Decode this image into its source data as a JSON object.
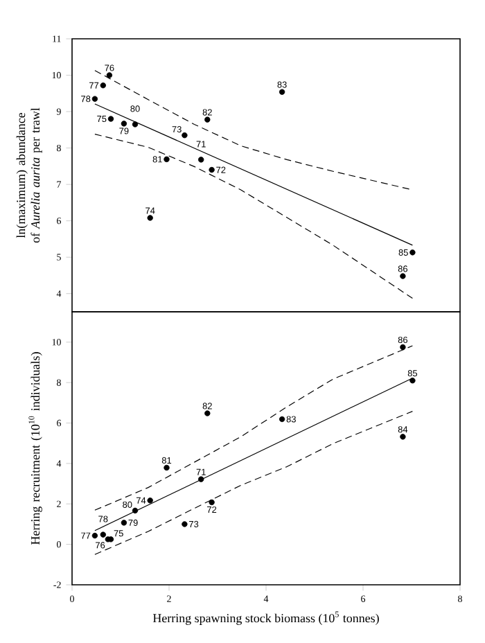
{
  "chart_data": [
    {
      "type": "scatter",
      "ylabel": "ln(maximum) abundance of *Aurelia aurita* per trawl",
      "xlim": [
        0,
        8
      ],
      "ylim": [
        3.5,
        11
      ],
      "yticks": [
        4,
        5,
        6,
        7,
        8,
        9,
        10,
        11
      ],
      "tick_labels": "y",
      "series": [
        {
          "color": "#000000",
          "marker": "circle",
          "x": [
            2.66,
            2.88,
            2.32,
            1.61,
            0.8,
            0.77,
            0.64,
            0.47,
            1.07,
            1.3,
            1.95,
            2.79,
            4.33,
            7.02,
            6.82
          ],
          "values": [
            7.68,
            7.4,
            8.35,
            6.08,
            8.8,
            10.0,
            9.72,
            9.35,
            8.67,
            8.65,
            7.69,
            8.78,
            9.54,
            5.13,
            4.48
          ]
        },
        {
          "type": "line",
          "color": "#000000",
          "marker": "none",
          "line_style": "solid",
          "x": [
            0.47,
            7.02
          ],
          "values": [
            9.21,
            5.33
          ]
        },
        {
          "type": "line",
          "color": "#000000",
          "marker": "none",
          "line_style": "dashed",
          "x": [
            0.47,
            1.57,
            2.52,
            3.48,
            4.43,
            5.38,
            7.02
          ],
          "values": [
            10.13,
            9.33,
            8.65,
            8.06,
            7.68,
            7.36,
            6.85
          ]
        },
        {
          "type": "line",
          "color": "#000000",
          "marker": "none",
          "line_style": "dashed",
          "x": [
            0.47,
            1.57,
            2.52,
            3.48,
            4.43,
            5.38,
            7.02
          ],
          "values": [
            8.38,
            8.02,
            7.49,
            6.85,
            6.09,
            5.33,
            3.87
          ]
        }
      ],
      "annotations": [
        {
          "text": "71",
          "x": 2.66,
          "y": 7.68
        },
        {
          "text": "72",
          "x": 2.88,
          "y": 7.4
        },
        {
          "text": "73",
          "x": 2.32,
          "y": 8.35
        },
        {
          "text": "74",
          "x": 1.61,
          "y": 6.08
        },
        {
          "text": "75",
          "x": 0.8,
          "y": 8.8
        },
        {
          "text": "76",
          "x": 0.77,
          "y": 10.0
        },
        {
          "text": "77",
          "x": 0.64,
          "y": 9.72
        },
        {
          "text": "78",
          "x": 0.47,
          "y": 9.35
        },
        {
          "text": "79",
          "x": 1.07,
          "y": 8.67
        },
        {
          "text": "80",
          "x": 1.3,
          "y": 8.65
        },
        {
          "text": "81",
          "x": 1.95,
          "y": 7.69
        },
        {
          "text": "82",
          "x": 2.79,
          "y": 8.78
        },
        {
          "text": "83",
          "x": 4.33,
          "y": 9.54
        },
        {
          "text": "85",
          "x": 7.02,
          "y": 5.13
        },
        {
          "text": "86",
          "x": 6.82,
          "y": 4.48
        }
      ]
    },
    {
      "type": "scatter",
      "xlabel": "Herring spawning stock biomass (10$^{5}$ tonnes)",
      "ylabel": "Herring recruitment (10$^{10}$ individuals)",
      "xlim": [
        0,
        8
      ],
      "xticks": [
        0,
        2,
        4,
        6,
        8
      ],
      "ylim": [
        -2,
        11.5
      ],
      "yticks": [
        -2,
        0,
        2,
        4,
        6,
        8,
        10
      ],
      "series": [
        {
          "color": "#000000",
          "marker": "circle",
          "x": [
            2.66,
            2.88,
            2.32,
            1.61,
            0.8,
            0.74,
            0.47,
            0.64,
            1.07,
            1.3,
            1.95,
            2.79,
            4.33,
            6.82,
            7.02,
            6.82
          ],
          "values": [
            3.22,
            2.08,
            1.0,
            2.17,
            0.25,
            0.25,
            0.43,
            0.48,
            1.07,
            1.67,
            3.79,
            6.48,
            6.19,
            5.32,
            8.1,
            9.75
          ]
        },
        {
          "type": "line",
          "color": "#000000",
          "marker": "none",
          "line_style": "solid",
          "x": [
            0.47,
            7.02
          ],
          "values": [
            0.68,
            8.22
          ]
        },
        {
          "type": "line",
          "color": "#000000",
          "marker": "none",
          "line_style": "dashed",
          "x": [
            0.47,
            1.57,
            2.52,
            3.48,
            4.43,
            5.38,
            7.02
          ],
          "values": [
            1.69,
            2.81,
            4.06,
            5.32,
            6.8,
            8.17,
            9.82
          ]
        },
        {
          "type": "line",
          "color": "#000000",
          "marker": "none",
          "line_style": "dashed",
          "x": [
            0.47,
            1.57,
            2.52,
            3.48,
            4.43,
            5.38,
            7.02
          ],
          "values": [
            -0.5,
            0.64,
            1.78,
            2.92,
            3.84,
            4.98,
            6.58
          ]
        }
      ],
      "annotations": [
        {
          "text": "71",
          "x": 2.66,
          "y": 3.22
        },
        {
          "text": "72",
          "x": 2.88,
          "y": 2.08
        },
        {
          "text": "73",
          "x": 2.32,
          "y": 1.0
        },
        {
          "text": "74",
          "x": 1.61,
          "y": 2.17
        },
        {
          "text": "75",
          "x": 0.8,
          "y": 0.25
        },
        {
          "text": "76",
          "x": 0.74,
          "y": 0.25
        },
        {
          "text": "77",
          "x": 0.47,
          "y": 0.43
        },
        {
          "text": "78",
          "x": 0.64,
          "y": 0.48
        },
        {
          "text": "79",
          "x": 1.07,
          "y": 1.07
        },
        {
          "text": "80",
          "x": 1.3,
          "y": 1.67
        },
        {
          "text": "81",
          "x": 1.95,
          "y": 3.79
        },
        {
          "text": "82",
          "x": 2.79,
          "y": 6.48
        },
        {
          "text": "83",
          "x": 4.33,
          "y": 6.19
        },
        {
          "text": "84",
          "x": 6.82,
          "y": 5.32
        },
        {
          "text": "85",
          "x": 7.02,
          "y": 8.1
        },
        {
          "text": "86",
          "x": 6.82,
          "y": 9.75
        }
      ]
    }
  ]
}
